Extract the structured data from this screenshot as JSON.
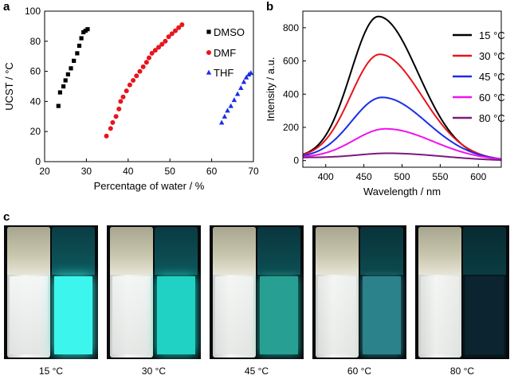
{
  "panels": {
    "a": "a",
    "b": "b",
    "c": "c"
  },
  "chart_data": [
    {
      "type": "scatter",
      "panel": "a",
      "xlabel": "Percentage of water / %",
      "ylabel": "UCST / °C",
      "xlim": [
        20,
        70
      ],
      "ylim": [
        0,
        100
      ],
      "xticks": [
        20,
        30,
        40,
        50,
        60,
        70
      ],
      "yticks": [
        0,
        20,
        40,
        60,
        80,
        100
      ],
      "legend_position": "top-right",
      "series": [
        {
          "name": "DMSO",
          "marker": "square",
          "color": "#000000",
          "points": [
            [
              23.3,
              37
            ],
            [
              23.7,
              46
            ],
            [
              24.5,
              50
            ],
            [
              25,
              54
            ],
            [
              25.6,
              58
            ],
            [
              26.3,
              62
            ],
            [
              27,
              67
            ],
            [
              27.8,
              72
            ],
            [
              28.3,
              77
            ],
            [
              28.8,
              82
            ],
            [
              29.3,
              86
            ],
            [
              29.8,
              87
            ],
            [
              30.3,
              88
            ]
          ]
        },
        {
          "name": "DMF",
          "marker": "circle",
          "color": "#e8141c",
          "points": [
            [
              34.8,
              17
            ],
            [
              35.8,
              22
            ],
            [
              36.3,
              26
            ],
            [
              37.1,
              30
            ],
            [
              37.8,
              35
            ],
            [
              38.2,
              40
            ],
            [
              38.8,
              43
            ],
            [
              39.6,
              47
            ],
            [
              40.4,
              51
            ],
            [
              41.2,
              54
            ],
            [
              42,
              57
            ],
            [
              42.8,
              60
            ],
            [
              43.6,
              63
            ],
            [
              44.4,
              66
            ],
            [
              45,
              69
            ],
            [
              45.7,
              72
            ],
            [
              46.5,
              74
            ],
            [
              47.3,
              76
            ],
            [
              48.1,
              78
            ],
            [
              48.9,
              80
            ],
            [
              49.7,
              83
            ],
            [
              50.5,
              85
            ],
            [
              51.3,
              87
            ],
            [
              52.1,
              89
            ],
            [
              52.9,
              91
            ]
          ]
        },
        {
          "name": "THF",
          "marker": "triangle",
          "color": "#1a2ee8",
          "points": [
            [
              62.4,
              26
            ],
            [
              63.1,
              30
            ],
            [
              63.8,
              34
            ],
            [
              64.6,
              37
            ],
            [
              65.4,
              41
            ],
            [
              66.2,
              45
            ],
            [
              67,
              49
            ],
            [
              67.7,
              53
            ],
            [
              68.3,
              56
            ],
            [
              68.9,
              58
            ],
            [
              69.4,
              59
            ]
          ]
        }
      ]
    },
    {
      "type": "line",
      "panel": "b",
      "xlabel": "Wavelength / nm",
      "ylabel": "Intensity / a.u.",
      "xlim": [
        370,
        630
      ],
      "ylim": [
        -40,
        900
      ],
      "xticks": [
        400,
        450,
        500,
        550,
        600
      ],
      "yticks": [
        0,
        200,
        400,
        600,
        800
      ],
      "legend_position": "top-right",
      "series": [
        {
          "name": "15 °C",
          "color": "#000000",
          "peak_nm": 469,
          "peak": 860
        },
        {
          "name": "30 °C",
          "color": "#e8141c",
          "peak_nm": 471,
          "peak": 632
        },
        {
          "name": "45 °C",
          "color": "#1a2ee8",
          "peak_nm": 474,
          "peak": 373
        },
        {
          "name": "60 °C",
          "color": "#f012f0",
          "peak_nm": 479,
          "peak": 184
        },
        {
          "name": "80 °C",
          "color": "#7a1a7e",
          "peak_nm": 485,
          "peak": 37
        }
      ],
      "baseline_start": 18
    }
  ],
  "photos": [
    {
      "label": "15 °C",
      "emission": "#3cf6ee",
      "glow": 1.0
    },
    {
      "label": "30 °C",
      "emission": "#22e0cf",
      "glow": 0.9
    },
    {
      "label": "45 °C",
      "emission": "#2fbfae",
      "glow": 0.72
    },
    {
      "label": "60 °C",
      "emission": "#3aa8b2",
      "glow": 0.6
    },
    {
      "label": "80 °C",
      "emission": "#123241",
      "glow": 0.25
    }
  ]
}
